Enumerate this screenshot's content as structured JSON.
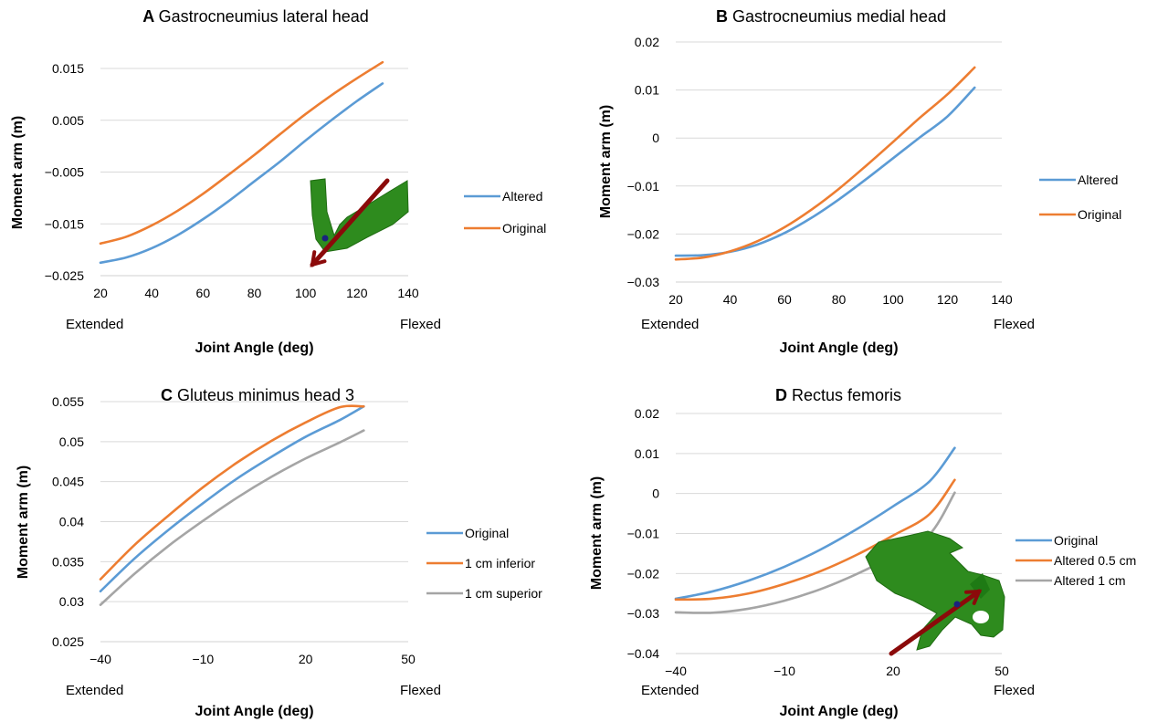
{
  "colors": {
    "blue": "#5B9BD5",
    "orange": "#ED7D31",
    "gray": "#A5A5A5",
    "grid": "#D9D9D9",
    "bone": "#2E8B1E",
    "arrow": "#8B0A0A"
  },
  "chart_data": [
    {
      "type": "line",
      "letter": "A",
      "title": "Gastrocneumius lateral head",
      "xlabel": "Joint Angle (deg)",
      "ylabel": "Moment arm (m)",
      "xlim": [
        20,
        140
      ],
      "ylim": [
        -0.025,
        0.015
      ],
      "xticks": [
        20,
        40,
        60,
        80,
        100,
        120,
        140
      ],
      "xtick_labels": [
        "20",
        "40",
        "60",
        "80",
        "100",
        "120",
        "140"
      ],
      "yticks": [
        -0.025,
        -0.015,
        -0.005,
        0.005,
        0.015
      ],
      "ytick_labels": [
        "−0.025",
        "−0.015",
        "−0.005",
        "0.005",
        "0.015"
      ],
      "x_end_labels": [
        "Extended",
        "Flexed"
      ],
      "grid": true,
      "legend_position": "right",
      "inset": "bone model with moment-arm arrow",
      "series": [
        {
          "name": "Altered",
          "color": "#5B9BD5",
          "x": [
            20,
            30,
            40,
            50,
            60,
            70,
            80,
            90,
            100,
            110,
            120,
            130
          ],
          "y": [
            -0.0225,
            -0.0215,
            -0.0197,
            -0.0172,
            -0.0141,
            -0.0106,
            -0.0068,
            -0.003,
            0.0011,
            0.005,
            0.0087,
            0.0121
          ]
        },
        {
          "name": "Original",
          "color": "#ED7D31",
          "x": [
            20,
            30,
            40,
            50,
            60,
            70,
            80,
            90,
            100,
            110,
            120,
            130
          ],
          "y": [
            -0.0188,
            -0.0175,
            -0.0153,
            -0.0125,
            -0.0092,
            -0.0055,
            -0.0017,
            0.0023,
            0.0062,
            0.0098,
            0.0131,
            0.0162
          ]
        }
      ]
    },
    {
      "type": "line",
      "letter": "B",
      "title": "Gastrocneumius medial head",
      "xlabel": "Joint Angle (deg)",
      "ylabel": "Moment arm (m)",
      "xlim": [
        20,
        140
      ],
      "ylim": [
        -0.03,
        0.02
      ],
      "xticks": [
        20,
        40,
        60,
        80,
        100,
        120,
        140
      ],
      "xtick_labels": [
        "20",
        "40",
        "60",
        "80",
        "100",
        "120",
        "140"
      ],
      "yticks": [
        -0.03,
        -0.02,
        -0.01,
        0,
        0.01,
        0.02
      ],
      "ytick_labels": [
        "−0.03",
        "−0.02",
        "−0.01",
        "0",
        "0.01",
        "0.02"
      ],
      "x_end_labels": [
        "Extended",
        "Flexed"
      ],
      "grid": true,
      "legend_position": "right",
      "series": [
        {
          "name": "Altered",
          "color": "#5B9BD5",
          "x": [
            20,
            30,
            40,
            50,
            60,
            70,
            80,
            90,
            100,
            110,
            120,
            130
          ],
          "y": [
            -0.0245,
            -0.0244,
            -0.0237,
            -0.0222,
            -0.0198,
            -0.0166,
            -0.0128,
            -0.0086,
            -0.0042,
            0.0002,
            0.0045,
            0.0105
          ]
        },
        {
          "name": "Original",
          "color": "#ED7D31",
          "x": [
            20,
            30,
            40,
            50,
            60,
            70,
            80,
            90,
            100,
            110,
            120,
            130
          ],
          "y": [
            -0.0253,
            -0.0249,
            -0.0236,
            -0.0215,
            -0.0186,
            -0.0149,
            -0.0106,
            -0.0058,
            -0.0008,
            0.0043,
            0.0091,
            0.0147
          ]
        }
      ]
    },
    {
      "type": "line",
      "letter": "C",
      "title": "Gluteus minimus head 3",
      "xlabel": "Joint Angle (deg)",
      "ylabel": "Moment arm (m)",
      "xlim": [
        -40,
        50
      ],
      "ylim": [
        0.025,
        0.055
      ],
      "xticks": [
        -40,
        -10,
        20,
        50
      ],
      "xtick_labels": [
        "−40",
        "−10",
        "20",
        "50"
      ],
      "yticks": [
        0.025,
        0.03,
        0.035,
        0.04,
        0.045,
        0.05,
        0.055
      ],
      "ytick_labels": [
        "0.025",
        "0.03",
        "0.035",
        "0.04",
        "0.045",
        "0.05",
        "0.055"
      ],
      "x_end_labels": [
        "Extended",
        "Flexed"
      ],
      "grid": true,
      "legend_position": "right",
      "series": [
        {
          "name": "Original",
          "color": "#5B9BD5",
          "x": [
            -40,
            -30,
            -20,
            -10,
            0,
            10,
            20,
            30,
            37
          ],
          "y": [
            0.0313,
            0.0354,
            0.039,
            0.0423,
            0.0454,
            0.0481,
            0.0506,
            0.0527,
            0.0544
          ]
        },
        {
          "name": "1 cm inferior",
          "color": "#ED7D31",
          "x": [
            -40,
            -30,
            -20,
            -10,
            0,
            10,
            20,
            30,
            37
          ],
          "y": [
            0.0328,
            0.0371,
            0.0408,
            0.0443,
            0.0474,
            0.0501,
            0.0524,
            0.0543,
            0.0544
          ]
        },
        {
          "name": "1 cm superior",
          "color": "#A5A5A5",
          "x": [
            -40,
            -30,
            -20,
            -10,
            0,
            10,
            20,
            30,
            37
          ],
          "y": [
            0.0296,
            0.0335,
            0.037,
            0.0401,
            0.043,
            0.0456,
            0.0479,
            0.0499,
            0.0514
          ]
        }
      ]
    },
    {
      "type": "line",
      "letter": "D",
      "title": "Rectus femoris",
      "xlabel": "Joint Angle (deg)",
      "ylabel": "Moment arm (m)",
      "xlim": [
        -40,
        50
      ],
      "ylim": [
        -0.04,
        0.02
      ],
      "xticks": [
        -40,
        -10,
        20,
        50
      ],
      "xtick_labels": [
        "−40",
        "−10",
        "20",
        "50"
      ],
      "yticks": [
        -0.04,
        -0.03,
        -0.02,
        -0.01,
        0,
        0.01,
        0.02
      ],
      "ytick_labels": [
        "−0.04",
        "−0.03",
        "−0.02",
        "−0.01",
        "0",
        "0.01",
        "0.02"
      ],
      "x_end_labels": [
        "Extended",
        "Flexed"
      ],
      "grid": true,
      "legend_position": "right",
      "inset": "pelvis bone model with moment-arm arrow",
      "series": [
        {
          "name": "Original",
          "color": "#5B9BD5",
          "x": [
            -40,
            -30,
            -20,
            -10,
            0,
            10,
            20,
            30,
            37
          ],
          "y": [
            -0.0263,
            -0.0245,
            -0.0218,
            -0.0183,
            -0.014,
            -0.0089,
            -0.0032,
            0.003,
            0.0114
          ]
        },
        {
          "name": "Altered 0.5 cm",
          "color": "#ED7D31",
          "x": [
            -40,
            -30,
            -20,
            -10,
            0,
            10,
            20,
            30,
            37
          ],
          "y": [
            -0.0265,
            -0.0263,
            -0.025,
            -0.0226,
            -0.0194,
            -0.0153,
            -0.0105,
            -0.0052,
            0.0034
          ]
        },
        {
          "name": "Altered 1 cm",
          "color": "#A5A5A5",
          "x": [
            -40,
            -30,
            -20,
            -10,
            0,
            10,
            20,
            30,
            37
          ],
          "y": [
            -0.0297,
            -0.0298,
            -0.0288,
            -0.0268,
            -0.0239,
            -0.0201,
            -0.0156,
            -0.0103,
            0.0002
          ]
        }
      ]
    }
  ]
}
